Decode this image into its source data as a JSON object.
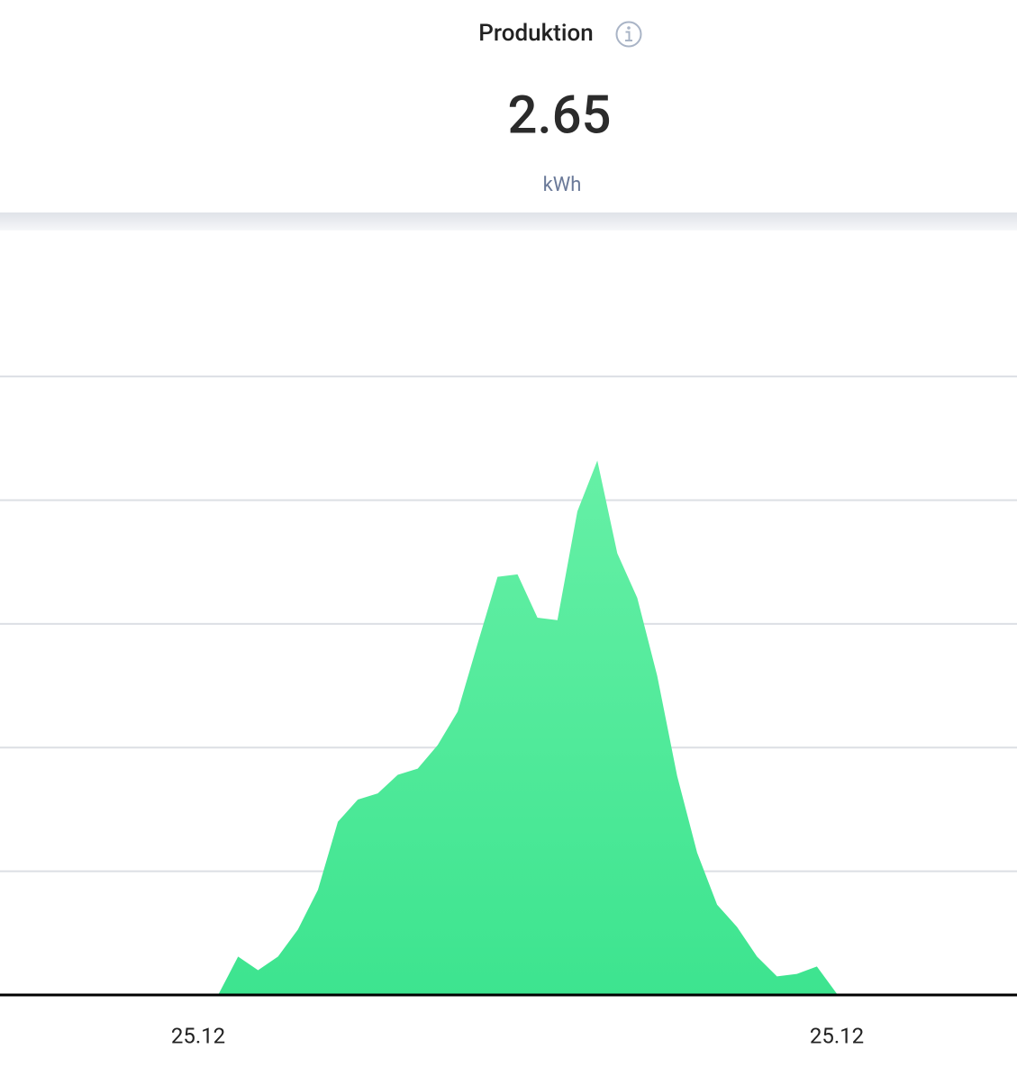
{
  "header": {
    "title": "Produktion",
    "value": "2.65",
    "unit": "kWh"
  },
  "chart_data": {
    "type": "area",
    "color": "#3de48f",
    "categories": [
      "25.12",
      null,
      null,
      null,
      null,
      null,
      null,
      null,
      null,
      null,
      null,
      null,
      null,
      null,
      null,
      null,
      null,
      null,
      null,
      null,
      null,
      null,
      null,
      null,
      null,
      null,
      null,
      null,
      null,
      null,
      null,
      null,
      "25.12",
      null
    ],
    "values": [
      0,
      0,
      0.31,
      0.2,
      0.31,
      0.53,
      0.85,
      1.4,
      1.58,
      1.63,
      1.78,
      1.83,
      2.02,
      2.29,
      2.84,
      3.38,
      3.4,
      3.05,
      3.03,
      3.91,
      4.32,
      3.57,
      3.21,
      2.58,
      1.77,
      1.15,
      0.73,
      0.55,
      0.31,
      0.15,
      0.17,
      0.23,
      0.01,
      0
    ],
    "ylim": [
      0,
      6.18
    ],
    "yticks": [
      1,
      2,
      3,
      4,
      5
    ],
    "grid": true
  }
}
